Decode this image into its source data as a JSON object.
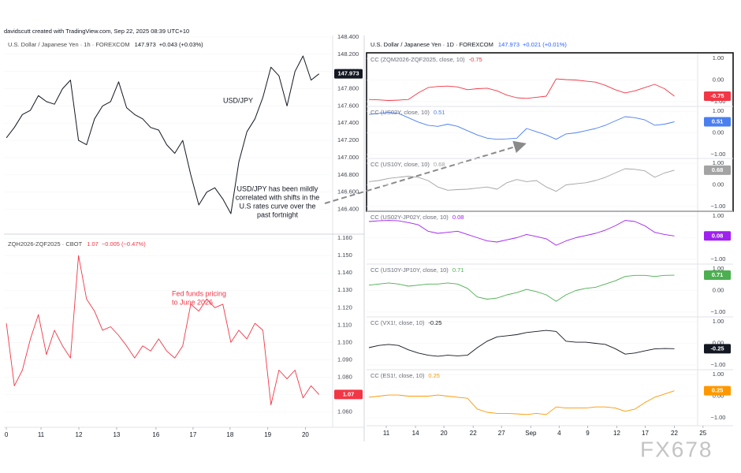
{
  "header": {
    "credit": "davidscutt created with TradingView.com, Sep 22, 2025 08:39 UTC+10"
  },
  "right_header": {
    "title": "U.S. Dollar / Japanese Yen · 1D · FOREXCOM",
    "last": 147.973,
    "change": "+0.021 (+0.01%)"
  },
  "watermark": "FX678",
  "chart_data": [
    {
      "type": "line",
      "title": "U.S. Dollar / Japanese Yen · 1h · FOREXCOM",
      "change": "+0.043 (+0.03%)",
      "color": "#131722",
      "label": "USD/JPY",
      "note": [
        "USD/JPY has been mildly",
        "correlated with shifts in the",
        "U.S rates curve over the",
        "past fortnight"
      ],
      "values": [
        147.23,
        147.35,
        147.5,
        147.55,
        147.72,
        147.65,
        147.62,
        147.8,
        147.9,
        147.2,
        147.15,
        147.45,
        147.6,
        147.65,
        147.88,
        147.58,
        147.5,
        147.45,
        147.35,
        147.32,
        147.15,
        147.05,
        147.2,
        146.8,
        146.45,
        146.6,
        146.65,
        146.52,
        146.35,
        146.95,
        147.3,
        147.45,
        147.7,
        148.05,
        147.95,
        147.6,
        148.0,
        148.18,
        147.9,
        147.973
      ],
      "ylim": [
        146.13,
        148.4
      ],
      "yticks": [
        {
          "value": 148.4,
          "label": "148.400"
        },
        {
          "value": 148.2,
          "label": "148.200"
        },
        {
          "value": 148.0,
          "label": "148.000"
        },
        {
          "value": 147.8,
          "label": "147.800"
        },
        {
          "value": 147.6,
          "label": "147.600"
        },
        {
          "value": 147.4,
          "label": "147.400"
        },
        {
          "value": 147.2,
          "label": "147.200"
        },
        {
          "value": 147.0,
          "label": "147.000"
        },
        {
          "value": 146.8,
          "label": "146.800"
        },
        {
          "value": 146.6,
          "label": "146.600"
        },
        {
          "value": 146.4,
          "label": "146.400"
        }
      ]
    },
    {
      "type": "line",
      "title": "ZQH2026-ZQF2025 · CBOT",
      "change": "−0.005 (−0.47%)",
      "color": "#f23645",
      "note": [
        "Fed funds pricing",
        "to June 2026"
      ],
      "values": [
        1.111,
        1.075,
        1.084,
        1.102,
        1.116,
        1.093,
        1.107,
        1.098,
        1.091,
        1.15,
        1.125,
        1.118,
        1.107,
        1.109,
        1.104,
        1.098,
        1.091,
        1.098,
        1.095,
        1.102,
        1.095,
        1.091,
        1.098,
        1.122,
        1.118,
        1.125,
        1.12,
        1.122,
        1.1,
        1.107,
        1.102,
        1.111,
        1.107,
        1.064,
        1.084,
        1.079,
        1.084,
        1.068,
        1.075,
        1.07
      ],
      "ylim": [
        1.052,
        1.161
      ],
      "yticks": [
        {
          "value": 1.16,
          "label": "1.160"
        },
        {
          "value": 1.15,
          "label": "1.150"
        },
        {
          "value": 1.14,
          "label": "1.140"
        },
        {
          "value": 1.13,
          "label": "1.130"
        },
        {
          "value": 1.12,
          "label": "1.120"
        },
        {
          "value": 1.11,
          "label": "1.110"
        },
        {
          "value": 1.1,
          "label": "1.100"
        },
        {
          "value": 1.09,
          "label": "1.090"
        },
        {
          "value": 1.08,
          "label": "1.080"
        },
        {
          "value": 1.07,
          "label": "1.070"
        },
        {
          "value": 1.06,
          "label": "1.060"
        }
      ],
      "xlim": [
        -0.3,
        40.5
      ],
      "xticks": [
        {
          "value": 0,
          "label": "0"
        },
        {
          "value": 4.32,
          "label": "11"
        },
        {
          "value": 9.04,
          "label": "12"
        },
        {
          "value": 13.75,
          "label": "13"
        },
        {
          "value": 18.66,
          "label": "16"
        },
        {
          "value": 23.28,
          "label": "17"
        },
        {
          "value": 27.9,
          "label": "18"
        },
        {
          "value": 32.6,
          "label": "19"
        },
        {
          "value": 37.3,
          "label": "20"
        }
      ]
    },
    {
      "type": "line",
      "title": "CC (ZQM2026-ZQF2025, close, 10)",
      "color": "#f23645",
      "values": [
        -0.9,
        -0.92,
        -0.95,
        -0.93,
        -0.9,
        -0.6,
        -0.35,
        -0.3,
        -0.28,
        -0.32,
        -0.45,
        -0.4,
        -0.38,
        -0.5,
        -0.7,
        -0.82,
        -0.85,
        -0.8,
        -0.75,
        0.05,
        0.02,
        0.0,
        -0.05,
        -0.1,
        -0.25,
        -0.45,
        -0.6,
        -0.5,
        -0.35,
        -0.2,
        -0.4,
        -0.75
      ],
      "ylim": [
        -1.15,
        1.15
      ],
      "yticks": [
        {
          "value": 1,
          "label": "1.00"
        },
        {
          "value": 0,
          "label": "0.00"
        },
        {
          "value": -1,
          "label": "−1.00"
        }
      ]
    },
    {
      "type": "line",
      "title": "CC (US02Y, close, 10)",
      "color": "#4a7ff0",
      "values": [
        0.85,
        0.9,
        0.95,
        0.9,
        0.7,
        0.5,
        0.35,
        0.3,
        0.4,
        0.3,
        0.1,
        -0.1,
        -0.25,
        -0.3,
        -0.28,
        -0.25,
        0.2,
        0.05,
        -0.1,
        -0.3,
        -0.05,
        0.0,
        0.1,
        0.2,
        0.35,
        0.55,
        0.75,
        0.7,
        0.6,
        0.35,
        0.4,
        0.51
      ],
      "ylim": [
        -1.15,
        1.15
      ],
      "yticks": [
        {
          "value": 1,
          "label": "1.00"
        },
        {
          "value": 0,
          "label": "0.00"
        },
        {
          "value": -1,
          "label": "−1.00"
        }
      ]
    },
    {
      "type": "line",
      "title": "CC (US10Y, close, 10)",
      "color": "#a3a3a3",
      "values": [
        0.15,
        0.2,
        0.3,
        0.35,
        0.4,
        0.35,
        0.2,
        -0.1,
        -0.25,
        -0.22,
        -0.2,
        -0.15,
        -0.1,
        -0.2,
        0.1,
        0.25,
        0.15,
        0.2,
        -0.1,
        -0.3,
        0.0,
        0.05,
        0.1,
        0.2,
        0.35,
        0.55,
        0.75,
        0.72,
        0.65,
        0.35,
        0.55,
        0.68
      ],
      "ylim": [
        -1.15,
        1.15
      ],
      "yticks": [
        {
          "value": 1,
          "label": "1.00"
        },
        {
          "value": 0,
          "label": "0.00"
        },
        {
          "value": -1,
          "label": "−1.00"
        }
      ]
    },
    {
      "type": "line",
      "title": "CC (US02Y-JP02Y, close, 10)",
      "color": "#a020f0",
      "values": [
        0.75,
        0.78,
        0.8,
        0.78,
        0.7,
        0.6,
        0.3,
        0.2,
        0.25,
        0.3,
        0.15,
        0.0,
        -0.15,
        -0.2,
        -0.1,
        0.0,
        0.15,
        0.05,
        -0.05,
        -0.35,
        -0.15,
        0.0,
        0.1,
        0.2,
        0.35,
        0.55,
        0.8,
        0.75,
        0.55,
        0.25,
        0.15,
        0.08
      ],
      "ylim": [
        -1.15,
        1.15
      ],
      "yticks": [
        {
          "value": 1,
          "label": "1.00"
        },
        {
          "value": 0,
          "label": "0.00"
        },
        {
          "value": -1,
          "label": "−1.00"
        }
      ]
    },
    {
      "type": "line",
      "title": "CC (US10Y-JP10Y, close, 10)",
      "color": "#4caf50",
      "values": [
        0.25,
        0.3,
        0.35,
        0.3,
        0.2,
        0.25,
        0.3,
        0.3,
        0.35,
        0.3,
        0.1,
        -0.3,
        -0.4,
        -0.35,
        -0.2,
        -0.1,
        0.05,
        -0.05,
        -0.2,
        -0.5,
        -0.2,
        0.0,
        0.1,
        0.15,
        0.3,
        0.45,
        0.65,
        0.7,
        0.7,
        0.65,
        0.7,
        0.71
      ],
      "ylim": [
        -1.15,
        1.15
      ],
      "yticks": [
        {
          "value": 1,
          "label": "1.00"
        },
        {
          "value": 0,
          "label": "0.00"
        },
        {
          "value": -1,
          "label": "−1.00"
        }
      ]
    },
    {
      "type": "line",
      "title": "CC (VX1!, close, 10)",
      "color": "#131722",
      "values": [
        -0.2,
        -0.1,
        -0.05,
        -0.1,
        -0.3,
        -0.45,
        -0.55,
        -0.6,
        -0.55,
        -0.58,
        -0.55,
        -0.2,
        0.1,
        0.3,
        0.35,
        0.4,
        0.5,
        0.55,
        0.6,
        0.55,
        0.1,
        0.05,
        0.05,
        0.0,
        -0.05,
        -0.25,
        -0.5,
        -0.45,
        -0.35,
        -0.26,
        -0.24,
        -0.25
      ],
      "ylim": [
        -1.15,
        1.15
      ],
      "yticks": [
        {
          "value": 1,
          "label": "1.00"
        },
        {
          "value": 0,
          "label": "0.00"
        },
        {
          "value": -1,
          "label": "−1.00"
        }
      ]
    },
    {
      "type": "line",
      "title": "CC (ES1!, close, 10)",
      "color": "#ff9800",
      "values": [
        -0.05,
        0.0,
        0.05,
        0.05,
        0.0,
        0.0,
        0.0,
        0.05,
        0.0,
        -0.05,
        -0.1,
        -0.6,
        -0.75,
        -0.8,
        -0.8,
        -0.82,
        -0.85,
        -0.8,
        -0.85,
        -0.5,
        -0.55,
        -0.55,
        -0.55,
        -0.5,
        -0.5,
        -0.55,
        -0.7,
        -0.6,
        -0.3,
        -0.05,
        0.1,
        0.25
      ],
      "ylim": [
        -1.15,
        1.15
      ],
      "yticks": [
        {
          "value": 1,
          "label": "1.00"
        },
        {
          "value": 0,
          "label": "0.00"
        },
        {
          "value": -1,
          "label": "−1.00"
        }
      ],
      "xlim": [
        -0.24,
        34.0
      ],
      "xticks": [
        {
          "value": 1.76,
          "label": "11"
        },
        {
          "value": 4.73,
          "label": "14"
        },
        {
          "value": 7.61,
          "label": "20"
        },
        {
          "value": 10.58,
          "label": "22"
        },
        {
          "value": 13.46,
          "label": "27"
        },
        {
          "value": 16.43,
          "label": "Sep"
        },
        {
          "value": 19.31,
          "label": "4"
        },
        {
          "value": 22.2,
          "label": "9"
        },
        {
          "value": 25.16,
          "label": "12"
        },
        {
          "value": 28.04,
          "label": "17"
        },
        {
          "value": 31.0,
          "label": "22"
        },
        {
          "value": 33.9,
          "label": "25"
        }
      ]
    }
  ]
}
